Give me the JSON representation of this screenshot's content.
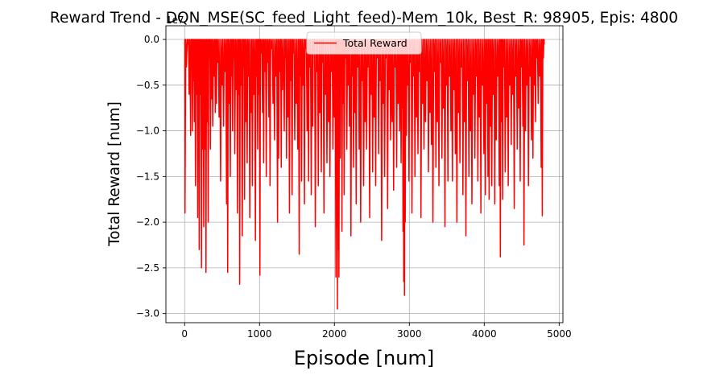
{
  "chart_data": {
    "type": "line",
    "title": "Reward Trend - DQN_MSE(SC_feed_Light_feed)-Mem_10k, Best_R: 98905, Epis: 4800",
    "xlabel": "Episode [num]",
    "ylabel": "Total Reward [num]",
    "y_offset_label": "1e7",
    "xlim": [
      -250,
      5050
    ],
    "ylim": [
      -3.1,
      0.15
    ],
    "xticks": [
      0,
      1000,
      2000,
      3000,
      4000,
      5000
    ],
    "xtick_labels": [
      "0",
      "1000",
      "2000",
      "3000",
      "4000",
      "5000"
    ],
    "yticks": [
      0.0,
      -0.5,
      -1.0,
      -1.5,
      -2.0,
      -2.5,
      -3.0
    ],
    "ytick_labels": [
      "0.0",
      "−0.5",
      "−1.0",
      "−1.5",
      "−2.0",
      "−2.5",
      "−3.0"
    ],
    "grid": true,
    "legend_position": "top-center",
    "color": "#ff0000",
    "series": [
      {
        "name": "Total Reward",
        "color": "#ff0000",
        "x_start": 0,
        "x_end": 4800,
        "dips": [
          [
            5,
            -1.9
          ],
          [
            25,
            -0.3
          ],
          [
            45,
            -0.05
          ],
          [
            60,
            -0.6
          ],
          [
            80,
            -1.05
          ],
          [
            95,
            -0.1
          ],
          [
            105,
            -1.0
          ],
          [
            120,
            -0.45
          ],
          [
            130,
            -0.9
          ],
          [
            145,
            -1.6
          ],
          [
            160,
            -0.6
          ],
          [
            175,
            -1.95
          ],
          [
            185,
            -0.75
          ],
          [
            195,
            -2.3
          ],
          [
            210,
            -0.6
          ],
          [
            225,
            -2.5
          ],
          [
            240,
            -1.2
          ],
          [
            255,
            -2.05
          ],
          [
            270,
            -1.2
          ],
          [
            285,
            -2.55
          ],
          [
            300,
            -0.9
          ],
          [
            315,
            -2.0
          ],
          [
            330,
            -0.2
          ],
          [
            345,
            -1.2
          ],
          [
            360,
            -0.65
          ],
          [
            375,
            -0.95
          ],
          [
            395,
            -0.4
          ],
          [
            410,
            -0.8
          ],
          [
            425,
            -0.7
          ],
          [
            440,
            -0.25
          ],
          [
            460,
            -0.85
          ],
          [
            480,
            -1.55
          ],
          [
            500,
            -0.5
          ],
          [
            520,
            -0.95
          ],
          [
            540,
            -0.35
          ],
          [
            560,
            -1.8
          ],
          [
            575,
            -2.55
          ],
          [
            590,
            -0.7
          ],
          [
            610,
            -1.5
          ],
          [
            625,
            -0.4
          ],
          [
            640,
            -1.0
          ],
          [
            655,
            -0.2
          ],
          [
            670,
            -1.25
          ],
          [
            690,
            -0.55
          ],
          [
            705,
            -1.9
          ],
          [
            725,
            -0.6
          ],
          [
            735,
            -2.68
          ],
          [
            750,
            -0.5
          ],
          [
            770,
            -2.15
          ],
          [
            785,
            -0.3
          ],
          [
            800,
            -1.75
          ],
          [
            815,
            -0.9
          ],
          [
            835,
            -1.35
          ],
          [
            850,
            -0.4
          ],
          [
            870,
            -1.95
          ],
          [
            890,
            -0.8
          ],
          [
            905,
            -1.6
          ],
          [
            925,
            -0.6
          ],
          [
            945,
            -2.2
          ],
          [
            960,
            -0.4
          ],
          [
            975,
            -1.2
          ],
          [
            990,
            -0.6
          ],
          [
            1005,
            -2.58
          ],
          [
            1020,
            -0.15
          ],
          [
            1040,
            -0.8
          ],
          [
            1055,
            -1.35
          ],
          [
            1070,
            -0.35
          ],
          [
            1090,
            -1.5
          ],
          [
            1105,
            -0.25
          ],
          [
            1125,
            -0.85
          ],
          [
            1140,
            -1.6
          ],
          [
            1160,
            -0.1
          ],
          [
            1180,
            -0.7
          ],
          [
            1200,
            -1.1
          ],
          [
            1220,
            -0.4
          ],
          [
            1240,
            -2.0
          ],
          [
            1255,
            -1.3
          ],
          [
            1275,
            -0.35
          ],
          [
            1290,
            -1.4
          ],
          [
            1305,
            -0.55
          ],
          [
            1330,
            -1.0
          ],
          [
            1345,
            -0.2
          ],
          [
            1360,
            -1.3
          ],
          [
            1380,
            -0.85
          ],
          [
            1400,
            -1.9
          ],
          [
            1415,
            -0.45
          ],
          [
            1435,
            -1.7
          ],
          [
            1450,
            -0.15
          ],
          [
            1470,
            -1.1
          ],
          [
            1490,
            -0.7
          ],
          [
            1510,
            -1.2
          ],
          [
            1530,
            -2.35
          ],
          [
            1545,
            -0.4
          ],
          [
            1560,
            -1.55
          ],
          [
            1580,
            -0.5
          ],
          [
            1600,
            -1.8
          ],
          [
            1615,
            -0.1
          ],
          [
            1635,
            -1.0
          ],
          [
            1655,
            -1.55
          ],
          [
            1670,
            -0.3
          ],
          [
            1690,
            -1.7
          ],
          [
            1710,
            -0.95
          ],
          [
            1725,
            -0.15
          ],
          [
            1745,
            -2.05
          ],
          [
            1765,
            -0.35
          ],
          [
            1785,
            -1.6
          ],
          [
            1805,
            -0.8
          ],
          [
            1825,
            -1.45
          ],
          [
            1840,
            -0.25
          ],
          [
            1860,
            -1.9
          ],
          [
            1880,
            -0.6
          ],
          [
            1900,
            -1.35
          ],
          [
            1920,
            -0.9
          ],
          [
            1940,
            -1.5
          ],
          [
            1960,
            -0.35
          ],
          [
            1980,
            -1.2
          ],
          [
            2000,
            -0.85
          ],
          [
            2020,
            -2.6
          ],
          [
            2030,
            -2.05
          ],
          [
            2040,
            -2.95
          ],
          [
            2050,
            -2.3
          ],
          [
            2060,
            -2.6
          ],
          [
            2075,
            -1.3
          ],
          [
            2090,
            -0.5
          ],
          [
            2100,
            -2.1
          ],
          [
            2115,
            -0.7
          ],
          [
            2130,
            -1.7
          ],
          [
            2150,
            -0.2
          ],
          [
            2165,
            -1.2
          ],
          [
            2185,
            -0.5
          ],
          [
            2200,
            -0.95
          ],
          [
            2220,
            -2.15
          ],
          [
            2240,
            -0.4
          ],
          [
            2255,
            -1.4
          ],
          [
            2275,
            -0.8
          ],
          [
            2290,
            -1.8
          ],
          [
            2310,
            -0.3
          ],
          [
            2330,
            -1.2
          ],
          [
            2350,
            -2.0
          ],
          [
            2370,
            -0.45
          ],
          [
            2390,
            -1.6
          ],
          [
            2410,
            -0.9
          ],
          [
            2430,
            -1.2
          ],
          [
            2450,
            -0.3
          ],
          [
            2470,
            -1.95
          ],
          [
            2490,
            -0.6
          ],
          [
            2510,
            -1.45
          ],
          [
            2530,
            -0.85
          ],
          [
            2550,
            -1.6
          ],
          [
            2570,
            -0.2
          ],
          [
            2590,
            -1.25
          ],
          [
            2610,
            -0.45
          ],
          [
            2630,
            -2.2
          ],
          [
            2650,
            -0.7
          ],
          [
            2670,
            -1.5
          ],
          [
            2690,
            -0.2
          ],
          [
            2710,
            -1.85
          ],
          [
            2730,
            -0.55
          ],
          [
            2750,
            -1.1
          ],
          [
            2770,
            -0.9
          ],
          [
            2790,
            -1.65
          ],
          [
            2810,
            -0.3
          ],
          [
            2830,
            -1.4
          ],
          [
            2850,
            -0.7
          ],
          [
            2870,
            -1.0
          ],
          [
            2890,
            -1.35
          ],
          [
            2905,
            -0.75
          ],
          [
            2915,
            -2.1
          ],
          [
            2925,
            -2.65
          ],
          [
            2935,
            -2.8
          ],
          [
            2945,
            -2.0
          ],
          [
            2960,
            -1.05
          ],
          [
            2975,
            -0.5
          ],
          [
            2995,
            -1.55
          ],
          [
            3015,
            -0.25
          ],
          [
            3035,
            -1.9
          ],
          [
            3055,
            -0.4
          ],
          [
            3075,
            -1.5
          ],
          [
            3095,
            -0.85
          ],
          [
            3115,
            -1.25
          ],
          [
            3135,
            -0.35
          ],
          [
            3155,
            -1.95
          ],
          [
            3175,
            -0.7
          ],
          [
            3195,
            -1.2
          ],
          [
            3215,
            -0.9
          ],
          [
            3235,
            -0.45
          ],
          [
            3255,
            -1.45
          ],
          [
            3275,
            -0.8
          ],
          [
            3295,
            -1.15
          ],
          [
            3315,
            -2.0
          ],
          [
            3335,
            -0.35
          ],
          [
            3355,
            -1.4
          ],
          [
            3375,
            -0.9
          ],
          [
            3395,
            -1.6
          ],
          [
            3415,
            -0.25
          ],
          [
            3435,
            -1.3
          ],
          [
            3455,
            -0.75
          ],
          [
            3475,
            -2.05
          ],
          [
            3495,
            -0.5
          ],
          [
            3515,
            -1.55
          ],
          [
            3535,
            -0.4
          ],
          [
            3555,
            -1.0
          ],
          [
            3575,
            -1.55
          ],
          [
            3595,
            -0.55
          ],
          [
            3615,
            -1.25
          ],
          [
            3635,
            -2.0
          ],
          [
            3655,
            -0.8
          ],
          [
            3675,
            -1.35
          ],
          [
            3695,
            -0.3
          ],
          [
            3715,
            -1.7
          ],
          [
            3735,
            -0.9
          ],
          [
            3755,
            -2.15
          ],
          [
            3775,
            -0.45
          ],
          [
            3795,
            -1.5
          ],
          [
            3815,
            -1.0
          ],
          [
            3835,
            -1.8
          ],
          [
            3855,
            -0.6
          ],
          [
            3875,
            -1.3
          ],
          [
            3895,
            -0.4
          ],
          [
            3915,
            -1.55
          ],
          [
            3935,
            -0.85
          ],
          [
            3955,
            -1.9
          ],
          [
            3975,
            -0.5
          ],
          [
            3995,
            -1.25
          ],
          [
            4015,
            -1.7
          ],
          [
            4030,
            -0.7
          ],
          [
            4050,
            -1.5
          ],
          [
            4065,
            -1.75
          ],
          [
            4085,
            -0.95
          ],
          [
            4100,
            -1.6
          ],
          [
            4120,
            -0.6
          ],
          [
            4140,
            -1.8
          ],
          [
            4160,
            -1.1
          ],
          [
            4180,
            -0.4
          ],
          [
            4200,
            -1.6
          ],
          [
            4215,
            -2.38
          ],
          [
            4230,
            -0.9
          ],
          [
            4245,
            -1.75
          ],
          [
            4260,
            -0.3
          ],
          [
            4280,
            -1.45
          ],
          [
            4300,
            -0.85
          ],
          [
            4320,
            -1.6
          ],
          [
            4340,
            -0.5
          ],
          [
            4360,
            -1.15
          ],
          [
            4380,
            -0.6
          ],
          [
            4400,
            -1.85
          ],
          [
            4420,
            -0.4
          ],
          [
            4440,
            -1.2
          ],
          [
            4460,
            -0.75
          ],
          [
            4480,
            -1.55
          ],
          [
            4495,
            -0.3
          ],
          [
            4515,
            -0.95
          ],
          [
            4530,
            -2.25
          ],
          [
            4550,
            -1.0
          ],
          [
            4570,
            -0.5
          ],
          [
            4590,
            -1.6
          ],
          [
            4610,
            -0.4
          ],
          [
            4630,
            -1.1
          ],
          [
            4650,
            -1.3
          ],
          [
            4665,
            -0.5
          ],
          [
            4685,
            -0.9
          ],
          [
            4700,
            -0.2
          ],
          [
            4720,
            -0.7
          ],
          [
            4740,
            -0.4
          ],
          [
            4760,
            -1.4
          ],
          [
            4775,
            -1.93
          ],
          [
            4790,
            -0.2
          ],
          [
            4800,
            -0.05
          ]
        ]
      }
    ]
  }
}
